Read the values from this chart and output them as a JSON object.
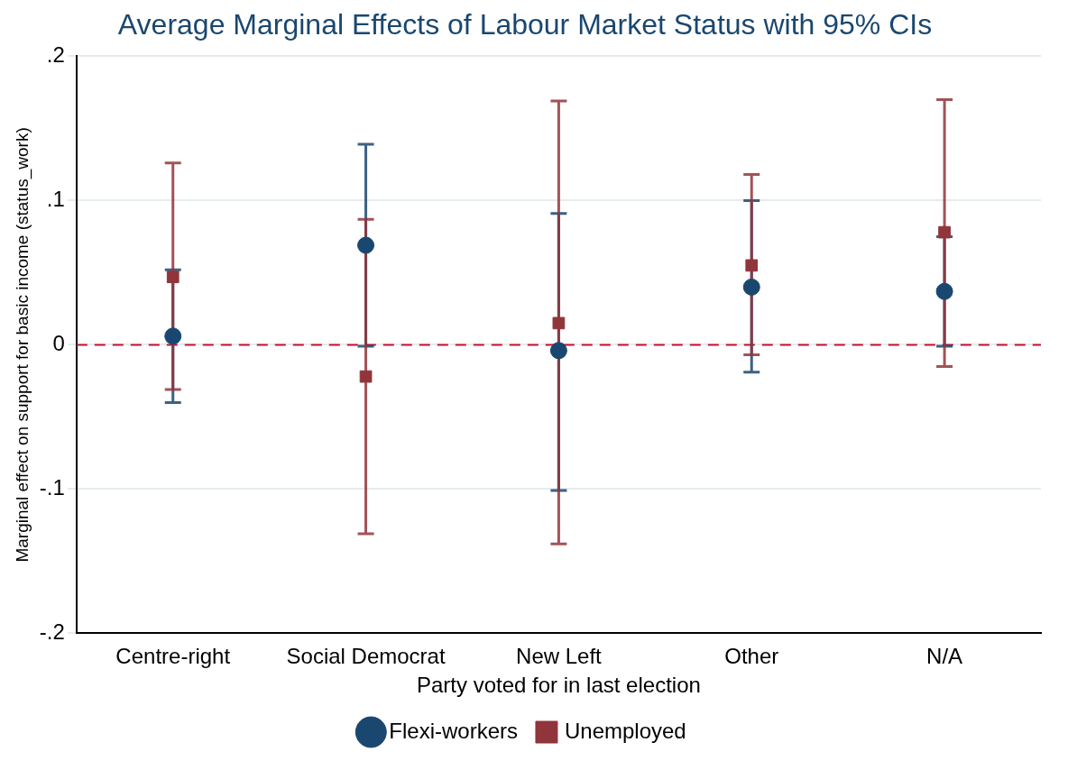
{
  "chart_data": {
    "type": "scatter",
    "title": "Average Marginal Effects of Labour Market Status with 95% CIs",
    "xlabel": "Party voted for in last election",
    "ylabel": "Marginal effect on support for basic income (status_work)",
    "categories": [
      "Centre-right",
      "Social Democrat",
      "New Left",
      "Other",
      "N/A"
    ],
    "series": [
      {
        "name": "Flexi-workers",
        "color": "#1a476f",
        "marker": "circle",
        "values": [
          0.006,
          0.069,
          -0.004,
          0.04,
          0.037
        ],
        "errors": [
          [
            -0.04,
            0.052
          ],
          [
            -0.001,
            0.139
          ],
          [
            -0.101,
            0.091
          ],
          [
            -0.019,
            0.1
          ],
          [
            -0.001,
            0.075
          ]
        ]
      },
      {
        "name": "Unemployed",
        "color": "#90353b",
        "marker": "square",
        "values": [
          0.047,
          -0.022,
          0.015,
          0.055,
          0.078
        ],
        "errors": [
          [
            -0.031,
            0.126
          ],
          [
            -0.131,
            0.087
          ],
          [
            -0.138,
            0.169
          ],
          [
            -0.007,
            0.118
          ],
          [
            -0.015,
            0.17
          ]
        ]
      }
    ],
    "ylim": [
      -0.2,
      0.2
    ],
    "yticks": [
      {
        "value": -0.2,
        "label": "-.2"
      },
      {
        "value": -0.1,
        "label": "-.1"
      },
      {
        "value": 0,
        "label": "0"
      },
      {
        "value": 0.1,
        "label": ".1"
      },
      {
        "value": 0.2,
        "label": ".2"
      }
    ],
    "ref_lines": [
      {
        "axis": "y",
        "value": 0,
        "color": "#c8102e",
        "line_style": "dashed"
      }
    ],
    "grid": "y",
    "legend": "bottom"
  }
}
